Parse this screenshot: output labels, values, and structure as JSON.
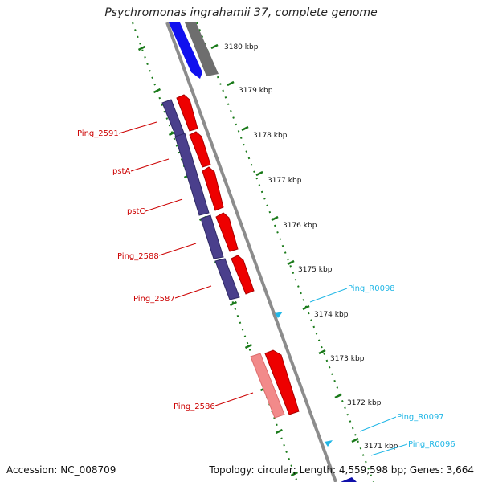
{
  "title": "Psychromonas ingrahamii 37, complete genome",
  "footer": {
    "accession": "Accession: NC_008709",
    "stats": "Topology: circular; Length: 4,559,598 bp; Genes: 3,664"
  },
  "colors": {
    "background": "#ffffff",
    "backbone": "#8c8c8c",
    "cds_forward": "#ee0000",
    "cds_reverse": "#4a3f8c",
    "cds_forward_light": "#f28a8a",
    "cds_blue": "#1010ee",
    "cds_gray": "#6e6e6e",
    "tick_green": "#1a7a1a",
    "rna": "#22b7e6",
    "label_red": "#cc0000",
    "label_cyan": "#22b7e6"
  },
  "tick_labels": [
    {
      "id": "t3180",
      "text": "3180 kbp"
    },
    {
      "id": "t3179",
      "text": "3179 kbp"
    },
    {
      "id": "t3178",
      "text": "3178 kbp"
    },
    {
      "id": "t3177",
      "text": "3177 kbp"
    },
    {
      "id": "t3176",
      "text": "3176 kbp"
    },
    {
      "id": "t3175",
      "text": "3175 kbp"
    },
    {
      "id": "t3174",
      "text": "3174 kbp"
    },
    {
      "id": "t3173",
      "text": "3173 kbp"
    },
    {
      "id": "t3172",
      "text": "3172 kbp"
    },
    {
      "id": "t3171",
      "text": "3171 kbp"
    }
  ],
  "gene_labels": [
    {
      "id": "g2591",
      "text": "Ping_2591",
      "type": "cds"
    },
    {
      "id": "gpstA",
      "text": "pstA",
      "type": "cds"
    },
    {
      "id": "gpstC",
      "text": "pstC",
      "type": "cds"
    },
    {
      "id": "g2588",
      "text": "Ping_2588",
      "type": "cds"
    },
    {
      "id": "g2587",
      "text": "Ping_2587",
      "type": "cds"
    },
    {
      "id": "g2586",
      "text": "Ping_2586",
      "type": "cds"
    },
    {
      "id": "r0098",
      "text": "Ping_R0098",
      "type": "rna"
    },
    {
      "id": "r0097",
      "text": "Ping_R0097",
      "type": "rna"
    },
    {
      "id": "r0096",
      "text": "Ping_R0096",
      "type": "rna"
    }
  ]
}
